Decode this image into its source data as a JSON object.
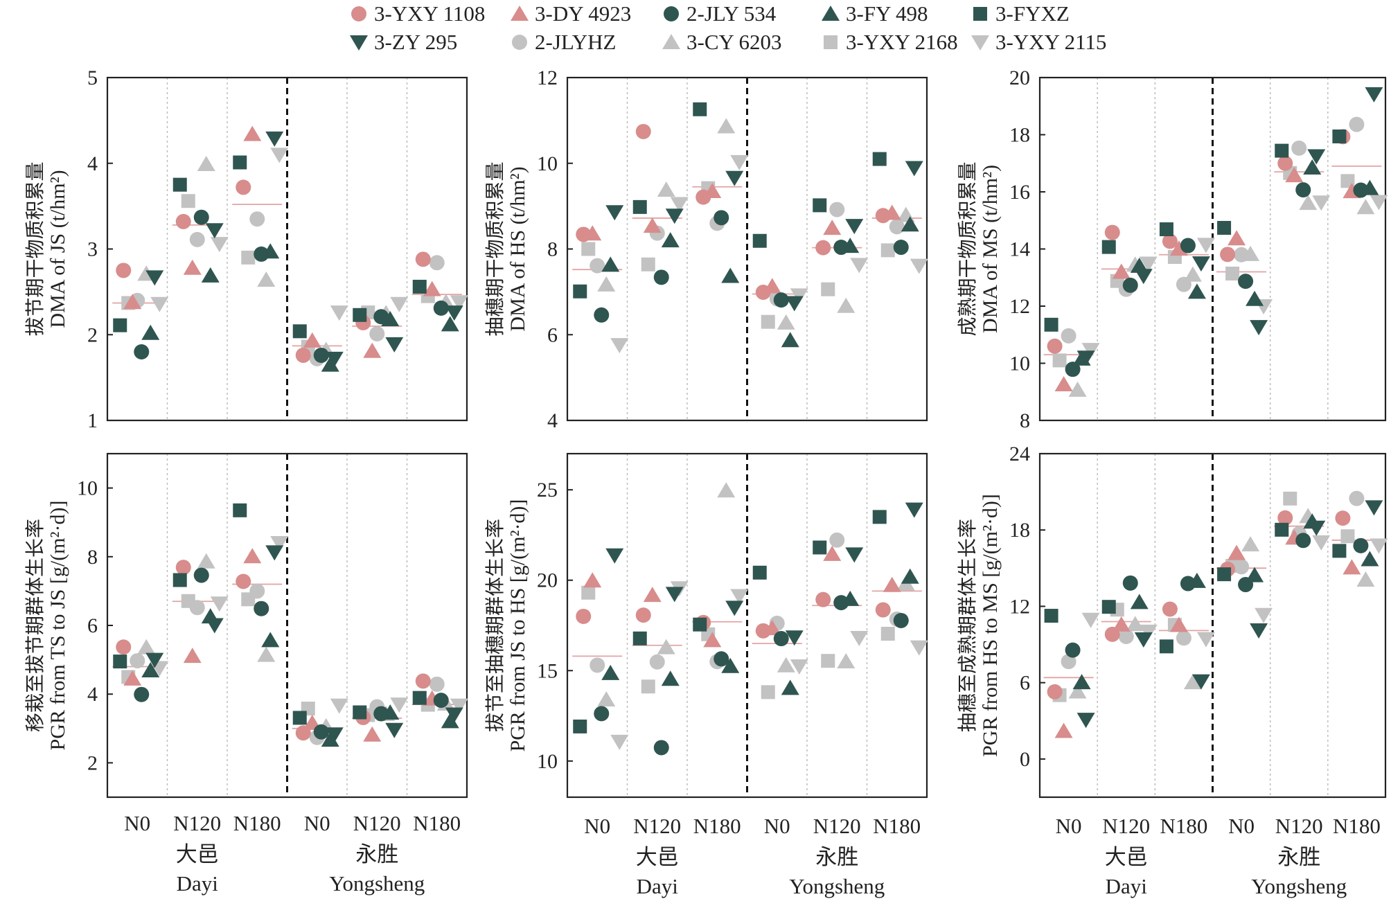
{
  "colors": {
    "pink": "#d88c8c",
    "dark": "#2f5550",
    "gray": "#c2c2c2",
    "mean": "#e3a3a3"
  },
  "legend": [
    {
      "label": "3-YXY 1108",
      "shape": "circle",
      "color": "pink"
    },
    {
      "label": "3-DY 4923",
      "shape": "tri-up",
      "color": "pink"
    },
    {
      "label": "2-JLY 534",
      "shape": "circle",
      "color": "dark"
    },
    {
      "label": "3-FY 498",
      "shape": "tri-up",
      "color": "dark"
    },
    {
      "label": "3-FYXZ",
      "shape": "square",
      "color": "dark"
    },
    {
      "label": "3-ZY 295",
      "shape": "tri-down",
      "color": "dark"
    },
    {
      "label": "2-JLYHZ",
      "shape": "circle",
      "color": "gray"
    },
    {
      "label": "3-CY 6203",
      "shape": "tri-up",
      "color": "gray"
    },
    {
      "label": "3-YXY 2168",
      "shape": "square",
      "color": "gray"
    },
    {
      "label": "3-YXY 2115",
      "shape": "tri-down",
      "color": "gray"
    }
  ],
  "categories": [
    "N0",
    "N120",
    "N180",
    "N0",
    "N120",
    "N180"
  ],
  "sites": [
    {
      "cn": "大邑",
      "en": "Dayi"
    },
    {
      "cn": "永胜",
      "en": "Yongsheng"
    }
  ],
  "chart_data": [
    {
      "type": "scatter",
      "ylabel_cn": "拔节期干物质积累量",
      "ylabel_en": "DMA of JS (t/hm²)",
      "ylim": [
        1,
        5
      ],
      "yticks": [
        1,
        2,
        3,
        4,
        5
      ],
      "means": [
        2.37,
        3.28,
        3.52,
        1.87,
        2.1,
        2.47
      ],
      "series": [
        {
          "values": [
            2.75,
            3.32,
            3.72,
            1.76,
            2.14,
            2.88
          ]
        },
        {
          "values": [
            2.38,
            2.78,
            4.34,
            1.93,
            1.81,
            2.53
          ]
        },
        {
          "values": [
            1.8,
            3.37,
            2.94,
            1.76,
            2.21,
            2.31
          ]
        },
        {
          "values": [
            2.02,
            2.69,
            2.97,
            1.65,
            2.18,
            2.12
          ]
        },
        {
          "values": [
            2.11,
            3.75,
            4.01,
            2.04,
            2.23,
            2.56
          ]
        },
        {
          "values": [
            2.67,
            3.22,
            4.29,
            1.72,
            1.89,
            2.26
          ]
        },
        {
          "values": [
            2.4,
            3.11,
            3.35,
            1.72,
            2.01,
            2.84
          ]
        },
        {
          "values": [
            2.71,
            3.99,
            2.64,
            1.82,
            2.25,
            2.38
          ]
        },
        {
          "values": [
            2.37,
            3.56,
            2.9,
            1.86,
            2.26,
            2.45
          ]
        },
        {
          "values": [
            2.36,
            3.06,
            4.1,
            2.26,
            2.36,
            2.38
          ]
        }
      ]
    },
    {
      "type": "scatter",
      "ylabel_cn": "抽穗期干物质积累量",
      "ylabel_en": "DMA of HS (t/hm²)",
      "ylim": [
        4,
        12
      ],
      "yticks": [
        4,
        6,
        8,
        10,
        12
      ],
      "means": [
        7.52,
        8.72,
        9.45,
        6.95,
        8.03,
        8.72
      ],
      "series": [
        {
          "values": [
            8.34,
            10.74,
            9.21,
            6.99,
            8.03,
            8.78
          ]
        },
        {
          "values": [
            8.36,
            8.54,
            9.35,
            7.13,
            8.49,
            8.84
          ]
        },
        {
          "values": [
            6.46,
            7.34,
            8.73,
            6.81,
            8.04,
            8.04
          ]
        },
        {
          "values": [
            7.63,
            8.2,
            7.37,
            5.87,
            8.07,
            8.57
          ]
        },
        {
          "values": [
            7.01,
            8.98,
            11.26,
            8.19,
            9.02,
            10.1
          ]
        },
        {
          "values": [
            8.86,
            8.78,
            9.66,
            6.74,
            8.54,
            9.89
          ]
        },
        {
          "values": [
            7.61,
            8.37,
            8.6,
            6.84,
            8.92,
            8.52
          ]
        },
        {
          "values": [
            7.17,
            9.38,
            10.86,
            6.28,
            6.67,
            8.79
          ]
        },
        {
          "values": [
            8.0,
            7.64,
            9.42,
            6.3,
            7.06,
            7.97
          ]
        },
        {
          "values": [
            5.76,
            9.05,
            10.03,
            6.92,
            7.63,
            7.61
          ]
        }
      ]
    },
    {
      "type": "scatter",
      "ylabel_cn": "成熟期干物质积累量",
      "ylabel_en": "DMA of MS (t/hm²)",
      "ylim": [
        8,
        20
      ],
      "yticks": [
        8,
        10,
        12,
        14,
        16,
        18,
        20
      ],
      "means": [
        10.3,
        13.3,
        13.8,
        13.2,
        16.7,
        16.9
      ],
      "series": [
        {
          "values": [
            10.6,
            14.58,
            14.27,
            13.81,
            17.0,
            17.93
          ]
        },
        {
          "values": [
            9.26,
            13.2,
            14.01,
            14.37,
            16.58,
            16.02
          ]
        },
        {
          "values": [
            9.79,
            12.73,
            14.12,
            12.87,
            16.07,
            16.06
          ]
        },
        {
          "values": [
            10.16,
            13.41,
            12.5,
            12.25,
            16.85,
            16.13
          ]
        },
        {
          "values": [
            11.35,
            14.07,
            14.69,
            14.74,
            17.44,
            17.94
          ]
        },
        {
          "values": [
            10.2,
            13.06,
            13.5,
            11.27,
            17.25,
            19.42
          ]
        },
        {
          "values": [
            10.96,
            12.59,
            12.76,
            13.8,
            17.53,
            18.36
          ]
        },
        {
          "values": [
            9.07,
            13.45,
            13.1,
            13.82,
            15.61,
            15.46
          ]
        },
        {
          "values": [
            10.1,
            12.88,
            13.72,
            13.14,
            16.66,
            16.38
          ]
        },
        {
          "values": [
            10.47,
            13.49,
            14.15,
            12.0,
            15.63,
            15.65
          ]
        }
      ]
    },
    {
      "type": "scatter",
      "ylabel_cn": "移栽至拔节期群体生长率",
      "ylabel_en": "PGR from TS to JS [g/(m²·d)]",
      "ylim": [
        1,
        11
      ],
      "yticks": [
        2,
        4,
        6,
        8,
        10
      ],
      "means": [
        4.8,
        6.7,
        7.2,
        3.0,
        3.3,
        3.7
      ],
      "series": [
        {
          "values": [
            5.37,
            7.69,
            7.28,
            2.87,
            3.32,
            4.38
          ]
        },
        {
          "values": [
            4.45,
            5.11,
            8.01,
            3.16,
            2.82,
            3.87
          ]
        },
        {
          "values": [
            3.99,
            7.46,
            6.49,
            2.9,
            3.43,
            3.82
          ]
        },
        {
          "values": [
            4.69,
            6.26,
            5.57,
            2.67,
            3.46,
            3.21
          ]
        },
        {
          "values": [
            4.95,
            7.32,
            9.35,
            3.31,
            3.47,
            3.89
          ]
        },
        {
          "values": [
            5.0,
            6.01,
            8.13,
            2.83,
            2.96,
            3.41
          ]
        },
        {
          "values": [
            4.97,
            6.52,
            7.0,
            2.74,
            3.63,
            4.29
          ]
        },
        {
          "values": [
            5.36,
            7.86,
            5.14,
            3.06,
            3.42,
            3.72
          ]
        },
        {
          "values": [
            4.5,
            6.71,
            6.76,
            3.58,
            3.39,
            3.69
          ]
        },
        {
          "values": [
            4.76,
            6.64,
            8.4,
            3.67,
            3.7,
            3.67
          ]
        }
      ]
    },
    {
      "type": "scatter",
      "ylabel_cn": "拔节至抽穗期群体生长率",
      "ylabel_en": "PGR from JS to HS [g/(m²·d)]",
      "ylim": [
        8,
        27
      ],
      "yticks": [
        10,
        15,
        20,
        25
      ],
      "means": [
        15.8,
        16.4,
        17.7,
        16.5,
        18.6,
        19.4
      ],
      "series": [
        {
          "values": [
            18.0,
            18.07,
            17.66,
            17.2,
            18.93,
            18.36
          ]
        },
        {
          "values": [
            19.98,
            19.18,
            16.68,
            17.34,
            21.45,
            19.73
          ]
        },
        {
          "values": [
            12.62,
            10.74,
            15.65,
            16.77,
            18.76,
            17.77
          ]
        },
        {
          "values": [
            14.86,
            14.54,
            15.25,
            14.04,
            18.96,
            20.19
          ]
        },
        {
          "values": [
            11.91,
            16.78,
            17.55,
            20.42,
            21.81,
            23.5
          ]
        },
        {
          "values": [
            21.38,
            19.25,
            18.48,
            16.84,
            21.43,
            23.91
          ]
        },
        {
          "values": [
            15.3,
            15.48,
            15.5,
            17.62,
            22.22,
            17.85
          ]
        },
        {
          "values": [
            13.4,
            16.29,
            24.96,
            15.29,
            15.51,
            19.81
          ]
        },
        {
          "values": [
            19.31,
            14.12,
            17.01,
            13.81,
            15.54,
            17.04
          ]
        },
        {
          "values": [
            11.07,
            19.56,
            19.13,
            15.24,
            16.81,
            16.29
          ]
        }
      ]
    },
    {
      "type": "scatter",
      "ylabel_cn": "抽穗至成熟期群体生长率",
      "ylabel_en": "PGR from HS to MS [g/(m²·d)]",
      "ylim": [
        -3,
        24
      ],
      "yticks": [
        0,
        6,
        12,
        18,
        24
      ],
      "means": [
        6.4,
        10.8,
        10.1,
        15.0,
        18.3,
        17.2
      ],
      "series": [
        {
          "values": [
            5.28,
            9.8,
            11.78,
            14.92,
            18.95,
            18.93
          ]
        },
        {
          "values": [
            2.2,
            10.56,
            10.53,
            16.18,
            17.39,
            15.05
          ]
        },
        {
          "values": [
            8.56,
            13.83,
            13.79,
            13.71,
            17.18,
            16.77
          ]
        },
        {
          "values": [
            6.03,
            12.33,
            13.99,
            14.44,
            18.65,
            15.7
          ]
        },
        {
          "values": [
            11.26,
            11.96,
            8.85,
            14.52,
            18.02,
            16.36
          ]
        },
        {
          "values": [
            3.09,
            9.41,
            6.11,
            10.12,
            18.19,
            19.79
          ]
        },
        {
          "values": [
            7.66,
            9.63,
            9.51,
            15.11,
            17.7,
            20.48
          ]
        },
        {
          "values": [
            5.3,
            10.59,
            6.03,
            16.86,
            19.08,
            14.09
          ]
        },
        {
          "values": [
            5.02,
            11.74,
            10.54,
            15.18,
            20.47,
            17.51
          ]
        },
        {
          "values": [
            10.95,
            10.02,
            9.43,
            11.33,
            17.04,
            16.79
          ]
        }
      ]
    }
  ]
}
